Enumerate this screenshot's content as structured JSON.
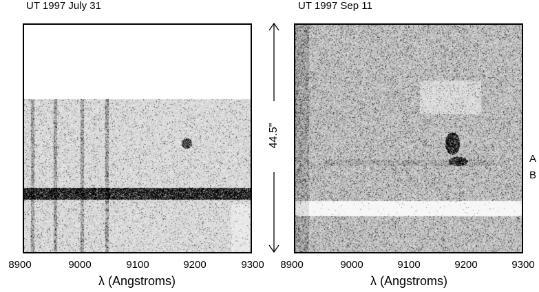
{
  "panels": [
    {
      "title": "UT 1997 July 31",
      "x_ticks": [
        "8900",
        "9000",
        "9100",
        "9200",
        "9300"
      ],
      "xlabel": "λ (Angstroms)",
      "xlim": [
        8900,
        9300
      ]
    },
    {
      "title": "UT 1997 Sep 11",
      "x_ticks": [
        "8900",
        "9000",
        "9100",
        "9200",
        "9300"
      ],
      "xlabel": "λ (Angstroms)",
      "xlim": [
        8900,
        9300
      ]
    }
  ],
  "scale_bar": {
    "label": "44.5\""
  },
  "trace_labels": {
    "a": "A",
    "b": "B"
  }
}
